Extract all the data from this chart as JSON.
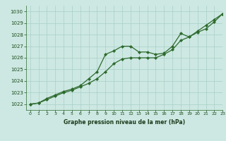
{
  "title": "Graphe pression niveau de la mer (hPa)",
  "background_color": "#cde8e2",
  "grid_color": "#a8cfc8",
  "line_color": "#2d6a2d",
  "marker_color": "#2d6a2d",
  "xlim": [
    -0.5,
    23
  ],
  "ylim": [
    1021.5,
    1030.5
  ],
  "xticks": [
    0,
    1,
    2,
    3,
    4,
    5,
    6,
    7,
    8,
    9,
    10,
    11,
    12,
    13,
    14,
    15,
    16,
    17,
    18,
    19,
    20,
    21,
    22,
    23
  ],
  "yticks": [
    1022,
    1023,
    1024,
    1025,
    1026,
    1027,
    1028,
    1029,
    1030
  ],
  "series1_x": [
    0,
    1,
    2,
    3,
    4,
    5,
    6,
    7,
    8,
    9,
    10,
    11,
    12,
    13,
    14,
    15,
    16,
    17,
    18,
    19,
    20,
    21,
    22,
    23
  ],
  "series1_y": [
    1022.0,
    1022.1,
    1022.5,
    1022.8,
    1023.1,
    1023.3,
    1023.6,
    1024.2,
    1024.8,
    1026.3,
    1026.6,
    1027.0,
    1027.0,
    1026.5,
    1026.5,
    1026.3,
    1026.4,
    1027.0,
    1028.1,
    1027.8,
    1028.2,
    1028.5,
    1029.1,
    1029.8
  ],
  "series2_x": [
    0,
    1,
    2,
    3,
    4,
    5,
    6,
    7,
    8,
    9,
    10,
    11,
    12,
    13,
    14,
    15,
    16,
    17,
    18,
    19,
    20,
    21,
    22,
    23
  ],
  "series2_y": [
    1022.0,
    1022.1,
    1022.4,
    1022.7,
    1023.0,
    1023.2,
    1023.5,
    1023.8,
    1024.2,
    1024.8,
    1025.5,
    1025.9,
    1026.0,
    1026.0,
    1026.0,
    1026.0,
    1026.3,
    1026.7,
    1027.5,
    1027.8,
    1028.3,
    1028.8,
    1029.3,
    1029.8
  ]
}
